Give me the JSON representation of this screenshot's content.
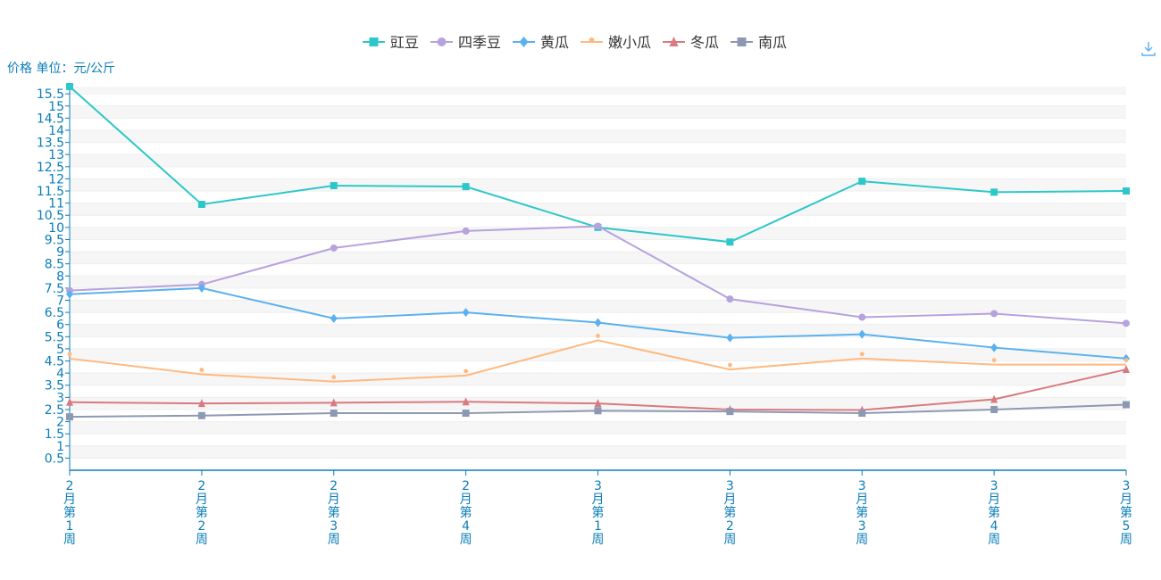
{
  "chart_data": {
    "type": "line",
    "title": "",
    "ylabel": "价格 单位：元/公斤",
    "xlabel": "",
    "categories": [
      "2月第1周",
      "2月第2周",
      "2月第3周",
      "2月第4周",
      "3月第1周",
      "3月第2周",
      "3月第3周",
      "3月第4周",
      "3月第5周"
    ],
    "ylim": [
      0,
      15.8
    ],
    "yticks": [
      0.5,
      1,
      1.5,
      2,
      2.5,
      3,
      3.5,
      4,
      4.5,
      5,
      5.5,
      6,
      6.5,
      7,
      7.5,
      8,
      8.5,
      9,
      9.5,
      10,
      10.5,
      11,
      11.5,
      12,
      12.5,
      13,
      13.5,
      14,
      14.5,
      15,
      15.5
    ],
    "grid": true,
    "legend_position": "top-center",
    "series": [
      {
        "name": "豇豆",
        "color": "#2ec7c9",
        "marker": "square",
        "values": [
          15.8,
          10.95,
          11.72,
          11.68,
          10.0,
          9.4,
          11.9,
          11.45,
          11.5
        ]
      },
      {
        "name": "四季豆",
        "color": "#b6a2de",
        "marker": "circle",
        "values": [
          7.4,
          7.65,
          9.15,
          9.85,
          10.05,
          7.05,
          6.3,
          6.45,
          6.05
        ]
      },
      {
        "name": "黄瓜",
        "color": "#5ab1ef",
        "marker": "diamond",
        "values": [
          7.25,
          7.5,
          6.25,
          6.5,
          6.08,
          5.45,
          5.6,
          5.05,
          4.6
        ]
      },
      {
        "name": "嫩小瓜",
        "color": "#ffb980",
        "marker": "pin",
        "values": [
          4.6,
          3.95,
          3.65,
          3.9,
          5.35,
          4.15,
          4.6,
          4.35,
          4.35
        ]
      },
      {
        "name": "冬瓜",
        "color": "#d87a80",
        "marker": "triangle",
        "values": [
          2.8,
          2.75,
          2.78,
          2.82,
          2.75,
          2.5,
          2.48,
          2.92,
          4.15
        ]
      },
      {
        "name": "南瓜",
        "color": "#8d98b3",
        "marker": "square",
        "values": [
          2.2,
          2.25,
          2.35,
          2.35,
          2.45,
          2.42,
          2.35,
          2.5,
          2.7
        ]
      }
    ]
  },
  "toolbar": {
    "download_icon": "download-icon"
  }
}
